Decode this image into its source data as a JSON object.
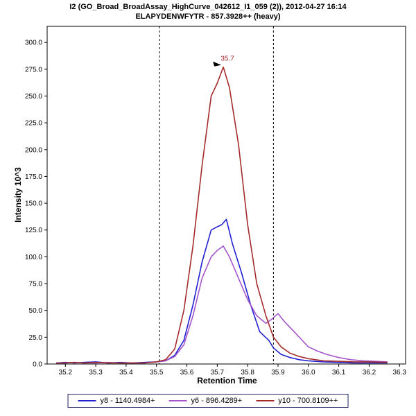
{
  "header": {
    "title_line1": "I2 (GO_Broad_BroadAssay_HighCurve_042612_I1_059 (2)), 2012-04-27 16:14",
    "title_line2": "ELAPYDENWFYTR - 857.3928++ (heavy)"
  },
  "axes": {
    "xlabel": "Retention Time",
    "ylabel": "Intensity 10^3"
  },
  "chart_data": {
    "type": "line",
    "title": "I2 (GO_Broad_BroadAssay_HighCurve_042612_I1_059 (2)), 2012-04-27 16:14",
    "subtitle": "ELAPYDENWFYTR - 857.3928++ (heavy)",
    "xlabel": "Retention Time",
    "ylabel": "Intensity 10^3",
    "xlim": [
      35.14,
      36.32
    ],
    "ylim": [
      0,
      315
    ],
    "x_ticks": [
      35.2,
      35.3,
      35.4,
      35.5,
      35.6,
      35.7,
      35.8,
      35.9,
      36.0,
      36.1,
      36.2,
      36.3
    ],
    "y_ticks": [
      0,
      25,
      50,
      75,
      100,
      125,
      150,
      175,
      200,
      225,
      250,
      275,
      300
    ],
    "grid": false,
    "legend_position": "bottom",
    "integration_boundaries": [
      35.51,
      35.885
    ],
    "peak_annotation": {
      "text": "35.7",
      "x": 35.72,
      "y": 277,
      "color": "#a52a2a"
    },
    "series": [
      {
        "name": "y8 - 1140.4984+",
        "color": "#2020d0",
        "points": [
          [
            35.17,
            1
          ],
          [
            35.2,
            1.5
          ],
          [
            35.23,
            1
          ],
          [
            35.26,
            1.5
          ],
          [
            35.3,
            2
          ],
          [
            35.34,
            1
          ],
          [
            35.38,
            1.5
          ],
          [
            35.42,
            1
          ],
          [
            35.46,
            1.5
          ],
          [
            35.5,
            2
          ],
          [
            35.53,
            3
          ],
          [
            35.56,
            8
          ],
          [
            35.59,
            22
          ],
          [
            35.62,
            55
          ],
          [
            35.65,
            95
          ],
          [
            35.68,
            125
          ],
          [
            35.7,
            128
          ],
          [
            35.715,
            130
          ],
          [
            35.73,
            135
          ],
          [
            35.75,
            112
          ],
          [
            35.78,
            85
          ],
          [
            35.81,
            55
          ],
          [
            35.84,
            30
          ],
          [
            35.87,
            22
          ],
          [
            35.885,
            15
          ],
          [
            35.91,
            9
          ],
          [
            35.94,
            6
          ],
          [
            35.97,
            4
          ],
          [
            36.0,
            3
          ],
          [
            36.05,
            2
          ],
          [
            36.1,
            1.5
          ],
          [
            36.15,
            1
          ],
          [
            36.2,
            1
          ],
          [
            36.26,
            1
          ]
        ]
      },
      {
        "name": "y6 - 896.4289+",
        "color": "#a455cc",
        "points": [
          [
            35.17,
            1
          ],
          [
            35.2,
            1
          ],
          [
            35.23,
            1.5
          ],
          [
            35.26,
            1
          ],
          [
            35.3,
            1
          ],
          [
            35.34,
            1.5
          ],
          [
            35.38,
            1
          ],
          [
            35.42,
            1
          ],
          [
            35.46,
            1
          ],
          [
            35.5,
            2
          ],
          [
            35.53,
            3
          ],
          [
            35.56,
            7
          ],
          [
            35.59,
            18
          ],
          [
            35.62,
            45
          ],
          [
            35.65,
            80
          ],
          [
            35.68,
            100
          ],
          [
            35.7,
            106
          ],
          [
            35.72,
            110
          ],
          [
            35.74,
            100
          ],
          [
            35.77,
            80
          ],
          [
            35.8,
            60
          ],
          [
            35.83,
            45
          ],
          [
            35.86,
            38
          ],
          [
            35.88,
            42
          ],
          [
            35.9,
            47
          ],
          [
            35.92,
            40
          ],
          [
            35.95,
            31
          ],
          [
            35.98,
            22
          ],
          [
            36.0,
            16
          ],
          [
            36.03,
            12
          ],
          [
            36.06,
            9
          ],
          [
            36.1,
            6
          ],
          [
            36.14,
            4
          ],
          [
            36.18,
            3
          ],
          [
            36.22,
            2.5
          ],
          [
            36.26,
            2
          ]
        ]
      },
      {
        "name": "y10 - 700.8109++",
        "color": "#a52a2a",
        "points": [
          [
            35.17,
            1
          ],
          [
            35.2,
            1
          ],
          [
            35.23,
            1.5
          ],
          [
            35.26,
            1
          ],
          [
            35.3,
            1.5
          ],
          [
            35.34,
            1
          ],
          [
            35.38,
            1
          ],
          [
            35.42,
            1
          ],
          [
            35.46,
            1
          ],
          [
            35.5,
            2
          ],
          [
            35.53,
            4
          ],
          [
            35.56,
            14
          ],
          [
            35.59,
            50
          ],
          [
            35.62,
            110
          ],
          [
            35.65,
            185
          ],
          [
            35.68,
            250
          ],
          [
            35.7,
            262
          ],
          [
            35.72,
            277
          ],
          [
            35.74,
            258
          ],
          [
            35.77,
            205
          ],
          [
            35.8,
            130
          ],
          [
            35.83,
            75
          ],
          [
            35.86,
            45
          ],
          [
            35.885,
            25
          ],
          [
            35.91,
            16
          ],
          [
            35.94,
            10
          ],
          [
            35.97,
            7
          ],
          [
            36.0,
            5
          ],
          [
            36.05,
            3
          ],
          [
            36.1,
            2.5
          ],
          [
            36.15,
            2
          ],
          [
            36.2,
            2
          ],
          [
            36.26,
            1.5
          ]
        ]
      }
    ]
  },
  "legend": {
    "border_color": "#202060"
  },
  "colors": {
    "axis": "#000000",
    "boundary_line": "#000000",
    "annotation_text": "#a52a2a"
  }
}
